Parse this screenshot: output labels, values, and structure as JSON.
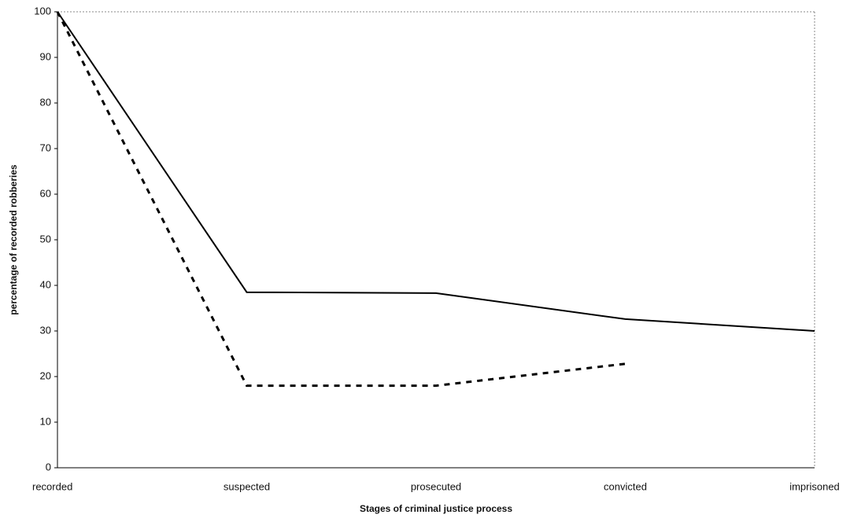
{
  "chart_data": {
    "type": "line",
    "x_label": "Stages of criminal justice process",
    "y_label": "percentage of recorded robberies",
    "categories": [
      "recorded",
      "suspected",
      "prosecuted",
      "convicted",
      "imprisoned"
    ],
    "series": [
      {
        "color": "#000000",
        "line_style": "solid",
        "values": [
          100,
          38.5,
          38.3,
          32.6,
          30
        ]
      },
      {
        "color": "#000000",
        "line_style": "dashed",
        "values": [
          100,
          18,
          18,
          22.8,
          null
        ]
      }
    ],
    "ylim": [
      0,
      100
    ],
    "yticks": [
      0,
      10,
      20,
      30,
      40,
      50,
      60,
      70,
      80,
      90,
      100
    ],
    "grid": false
  }
}
